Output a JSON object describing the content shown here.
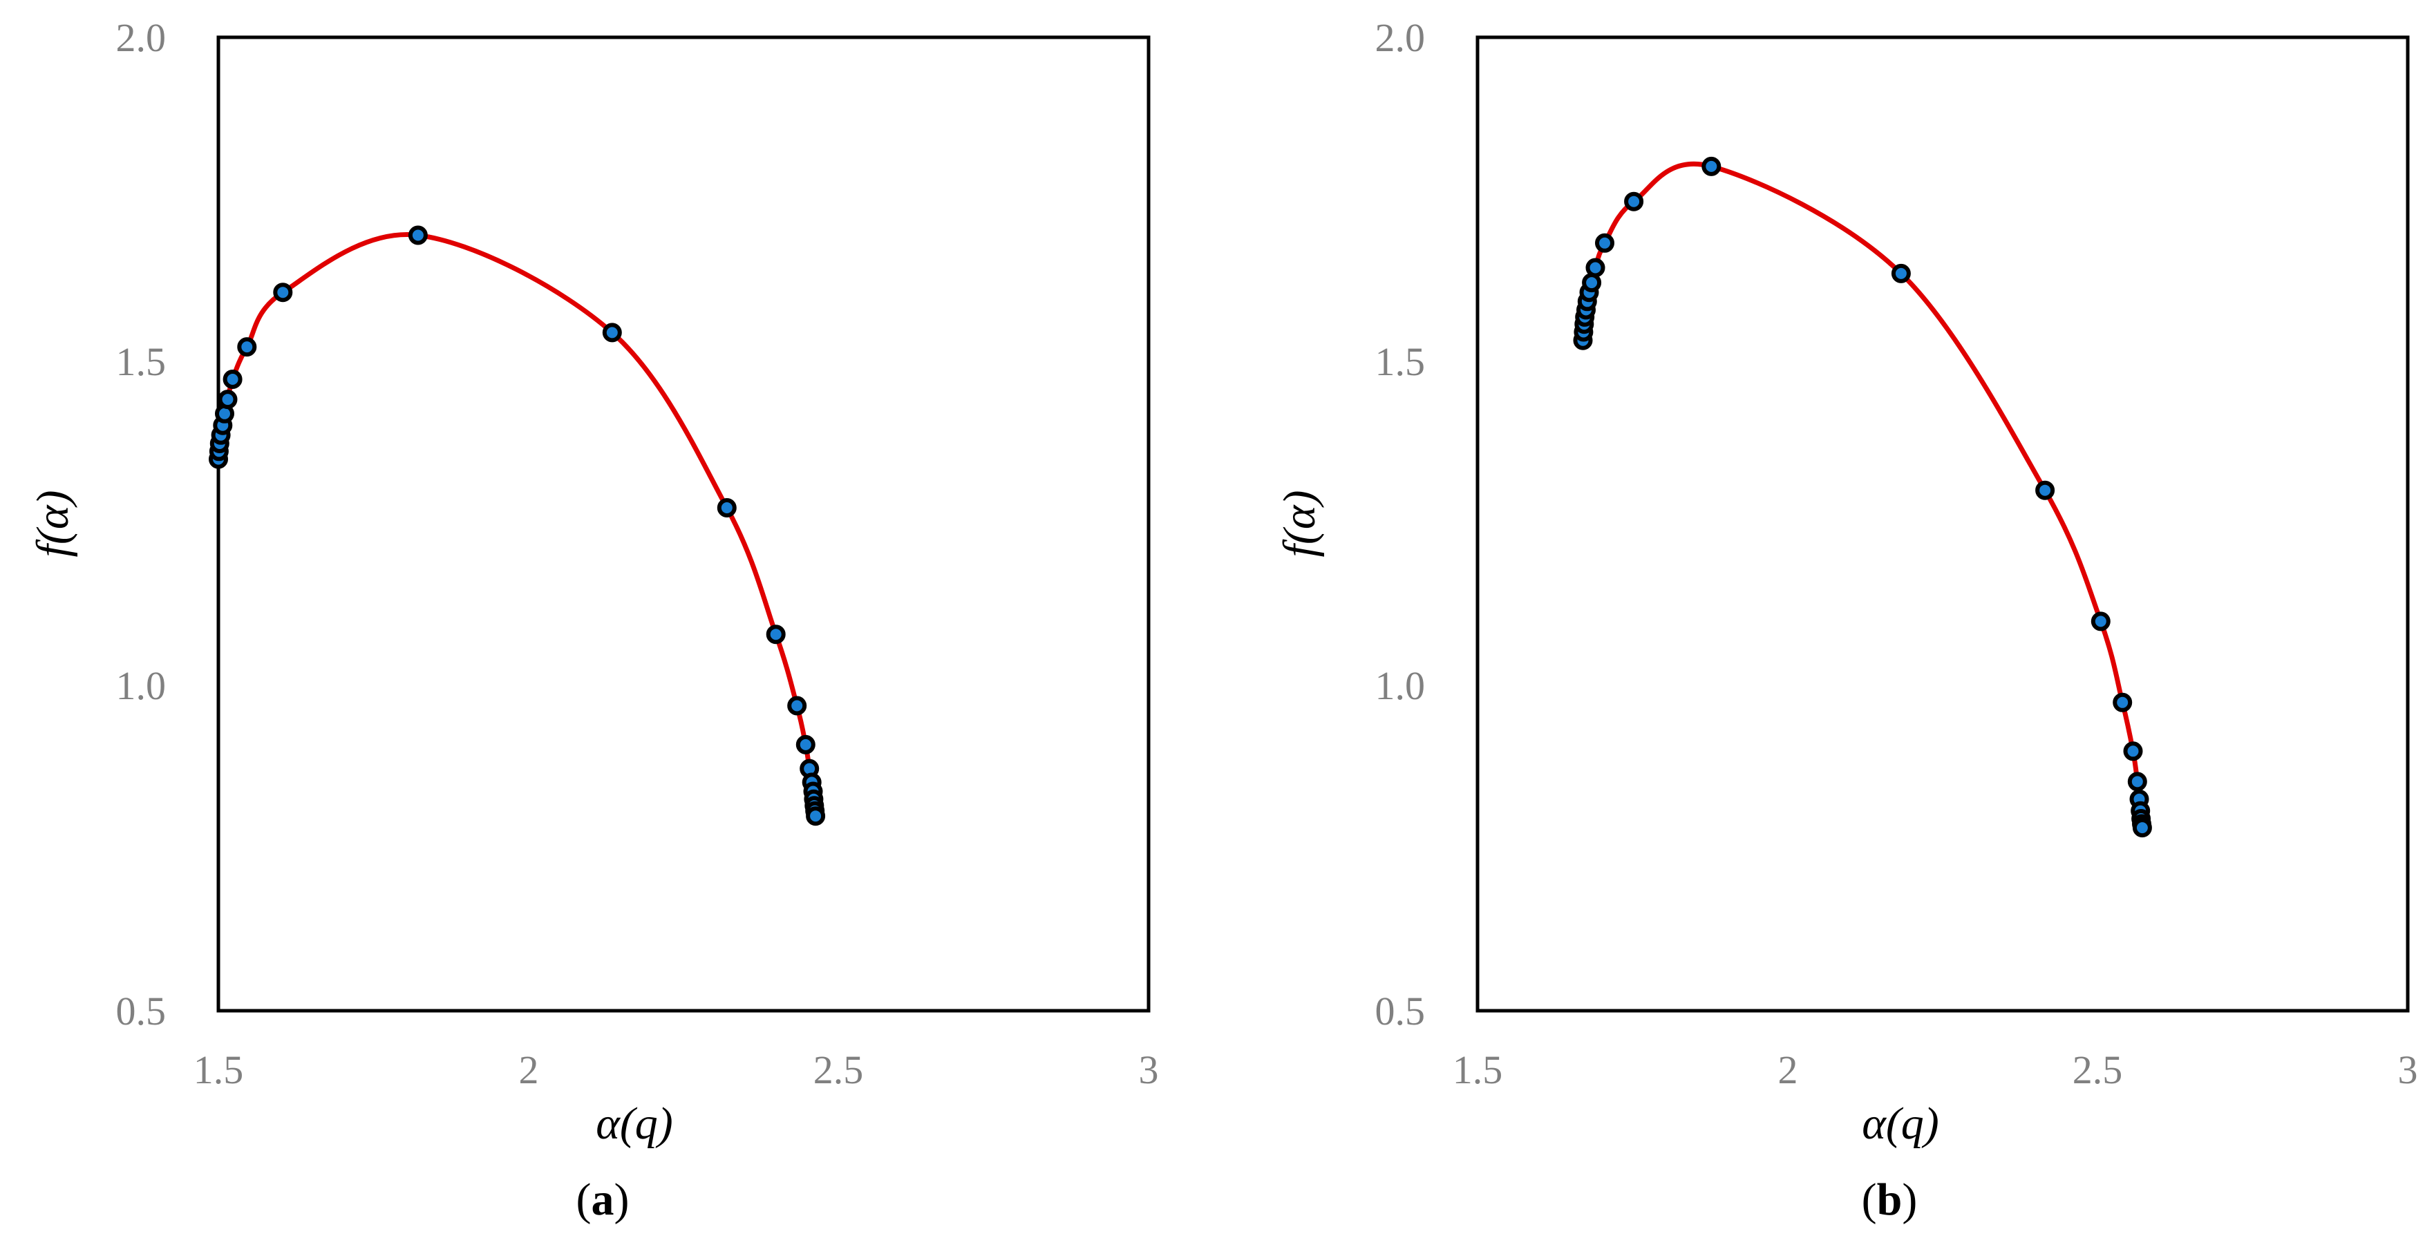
{
  "chart_data": [
    {
      "type": "line",
      "panel_label": "(a)",
      "panel_letter": "a",
      "xlabel": "α(q)",
      "ylabel": "f(α)",
      "xlim": [
        1.5,
        3.0
      ],
      "ylim": [
        0.5,
        2.0
      ],
      "x_ticks": [
        "1.5",
        "2",
        "2.5",
        "3"
      ],
      "y_ticks": [
        "0.5",
        "1.0",
        "1.5",
        "2.0"
      ],
      "grid": false,
      "series": [
        {
          "curve_color": "#e00000",
          "marker_fill": "#1a7fd4",
          "marker_edge": "#000000",
          "points": [
            {
              "x": 1.5,
              "y": 1.35
            },
            {
              "x": 1.501,
              "y": 1.362
            },
            {
              "x": 1.502,
              "y": 1.374
            },
            {
              "x": 1.504,
              "y": 1.387
            },
            {
              "x": 1.507,
              "y": 1.402
            },
            {
              "x": 1.51,
              "y": 1.42
            },
            {
              "x": 1.515,
              "y": 1.442
            },
            {
              "x": 1.523,
              "y": 1.473
            },
            {
              "x": 1.546,
              "y": 1.523
            },
            {
              "x": 1.604,
              "y": 1.607
            },
            {
              "x": 1.822,
              "y": 1.695
            },
            {
              "x": 2.135,
              "y": 1.545
            },
            {
              "x": 2.32,
              "y": 1.275
            },
            {
              "x": 2.399,
              "y": 1.08
            },
            {
              "x": 2.433,
              "y": 0.97
            },
            {
              "x": 2.447,
              "y": 0.91
            },
            {
              "x": 2.453,
              "y": 0.873
            },
            {
              "x": 2.457,
              "y": 0.852
            },
            {
              "x": 2.459,
              "y": 0.838
            },
            {
              "x": 2.46,
              "y": 0.826
            },
            {
              "x": 2.461,
              "y": 0.816
            },
            {
              "x": 2.462,
              "y": 0.808
            },
            {
              "x": 2.463,
              "y": 0.8
            }
          ]
        }
      ]
    },
    {
      "type": "line",
      "panel_label": "(b)",
      "panel_letter": "b",
      "xlabel": "α(q)",
      "ylabel": "f(α)",
      "xlim": [
        1.5,
        3.0
      ],
      "ylim": [
        0.5,
        2.0
      ],
      "x_ticks": [
        "1.5",
        "2",
        "2.5",
        "3"
      ],
      "y_ticks": [
        "0.5",
        "1.0",
        "1.5",
        "2.0"
      ],
      "grid": false,
      "series": [
        {
          "curve_color": "#e00000",
          "marker_fill": "#1a7fd4",
          "marker_edge": "#000000",
          "points": [
            {
              "x": 1.67,
              "y": 1.533
            },
            {
              "x": 1.671,
              "y": 1.546
            },
            {
              "x": 1.672,
              "y": 1.558
            },
            {
              "x": 1.673,
              "y": 1.569
            },
            {
              "x": 1.675,
              "y": 1.58
            },
            {
              "x": 1.677,
              "y": 1.593
            },
            {
              "x": 1.68,
              "y": 1.607
            },
            {
              "x": 1.684,
              "y": 1.622
            },
            {
              "x": 1.69,
              "y": 1.645
            },
            {
              "x": 1.705,
              "y": 1.683
            },
            {
              "x": 1.752,
              "y": 1.747
            },
            {
              "x": 1.877,
              "y": 1.801
            },
            {
              "x": 2.183,
              "y": 1.636
            },
            {
              "x": 2.415,
              "y": 1.302
            },
            {
              "x": 2.505,
              "y": 1.1
            },
            {
              "x": 2.54,
              "y": 0.975
            },
            {
              "x": 2.557,
              "y": 0.9
            },
            {
              "x": 2.564,
              "y": 0.853
            },
            {
              "x": 2.567,
              "y": 0.826
            },
            {
              "x": 2.569,
              "y": 0.808
            },
            {
              "x": 2.57,
              "y": 0.796
            },
            {
              "x": 2.571,
              "y": 0.788
            },
            {
              "x": 2.572,
              "y": 0.782
            }
          ]
        }
      ]
    }
  ]
}
